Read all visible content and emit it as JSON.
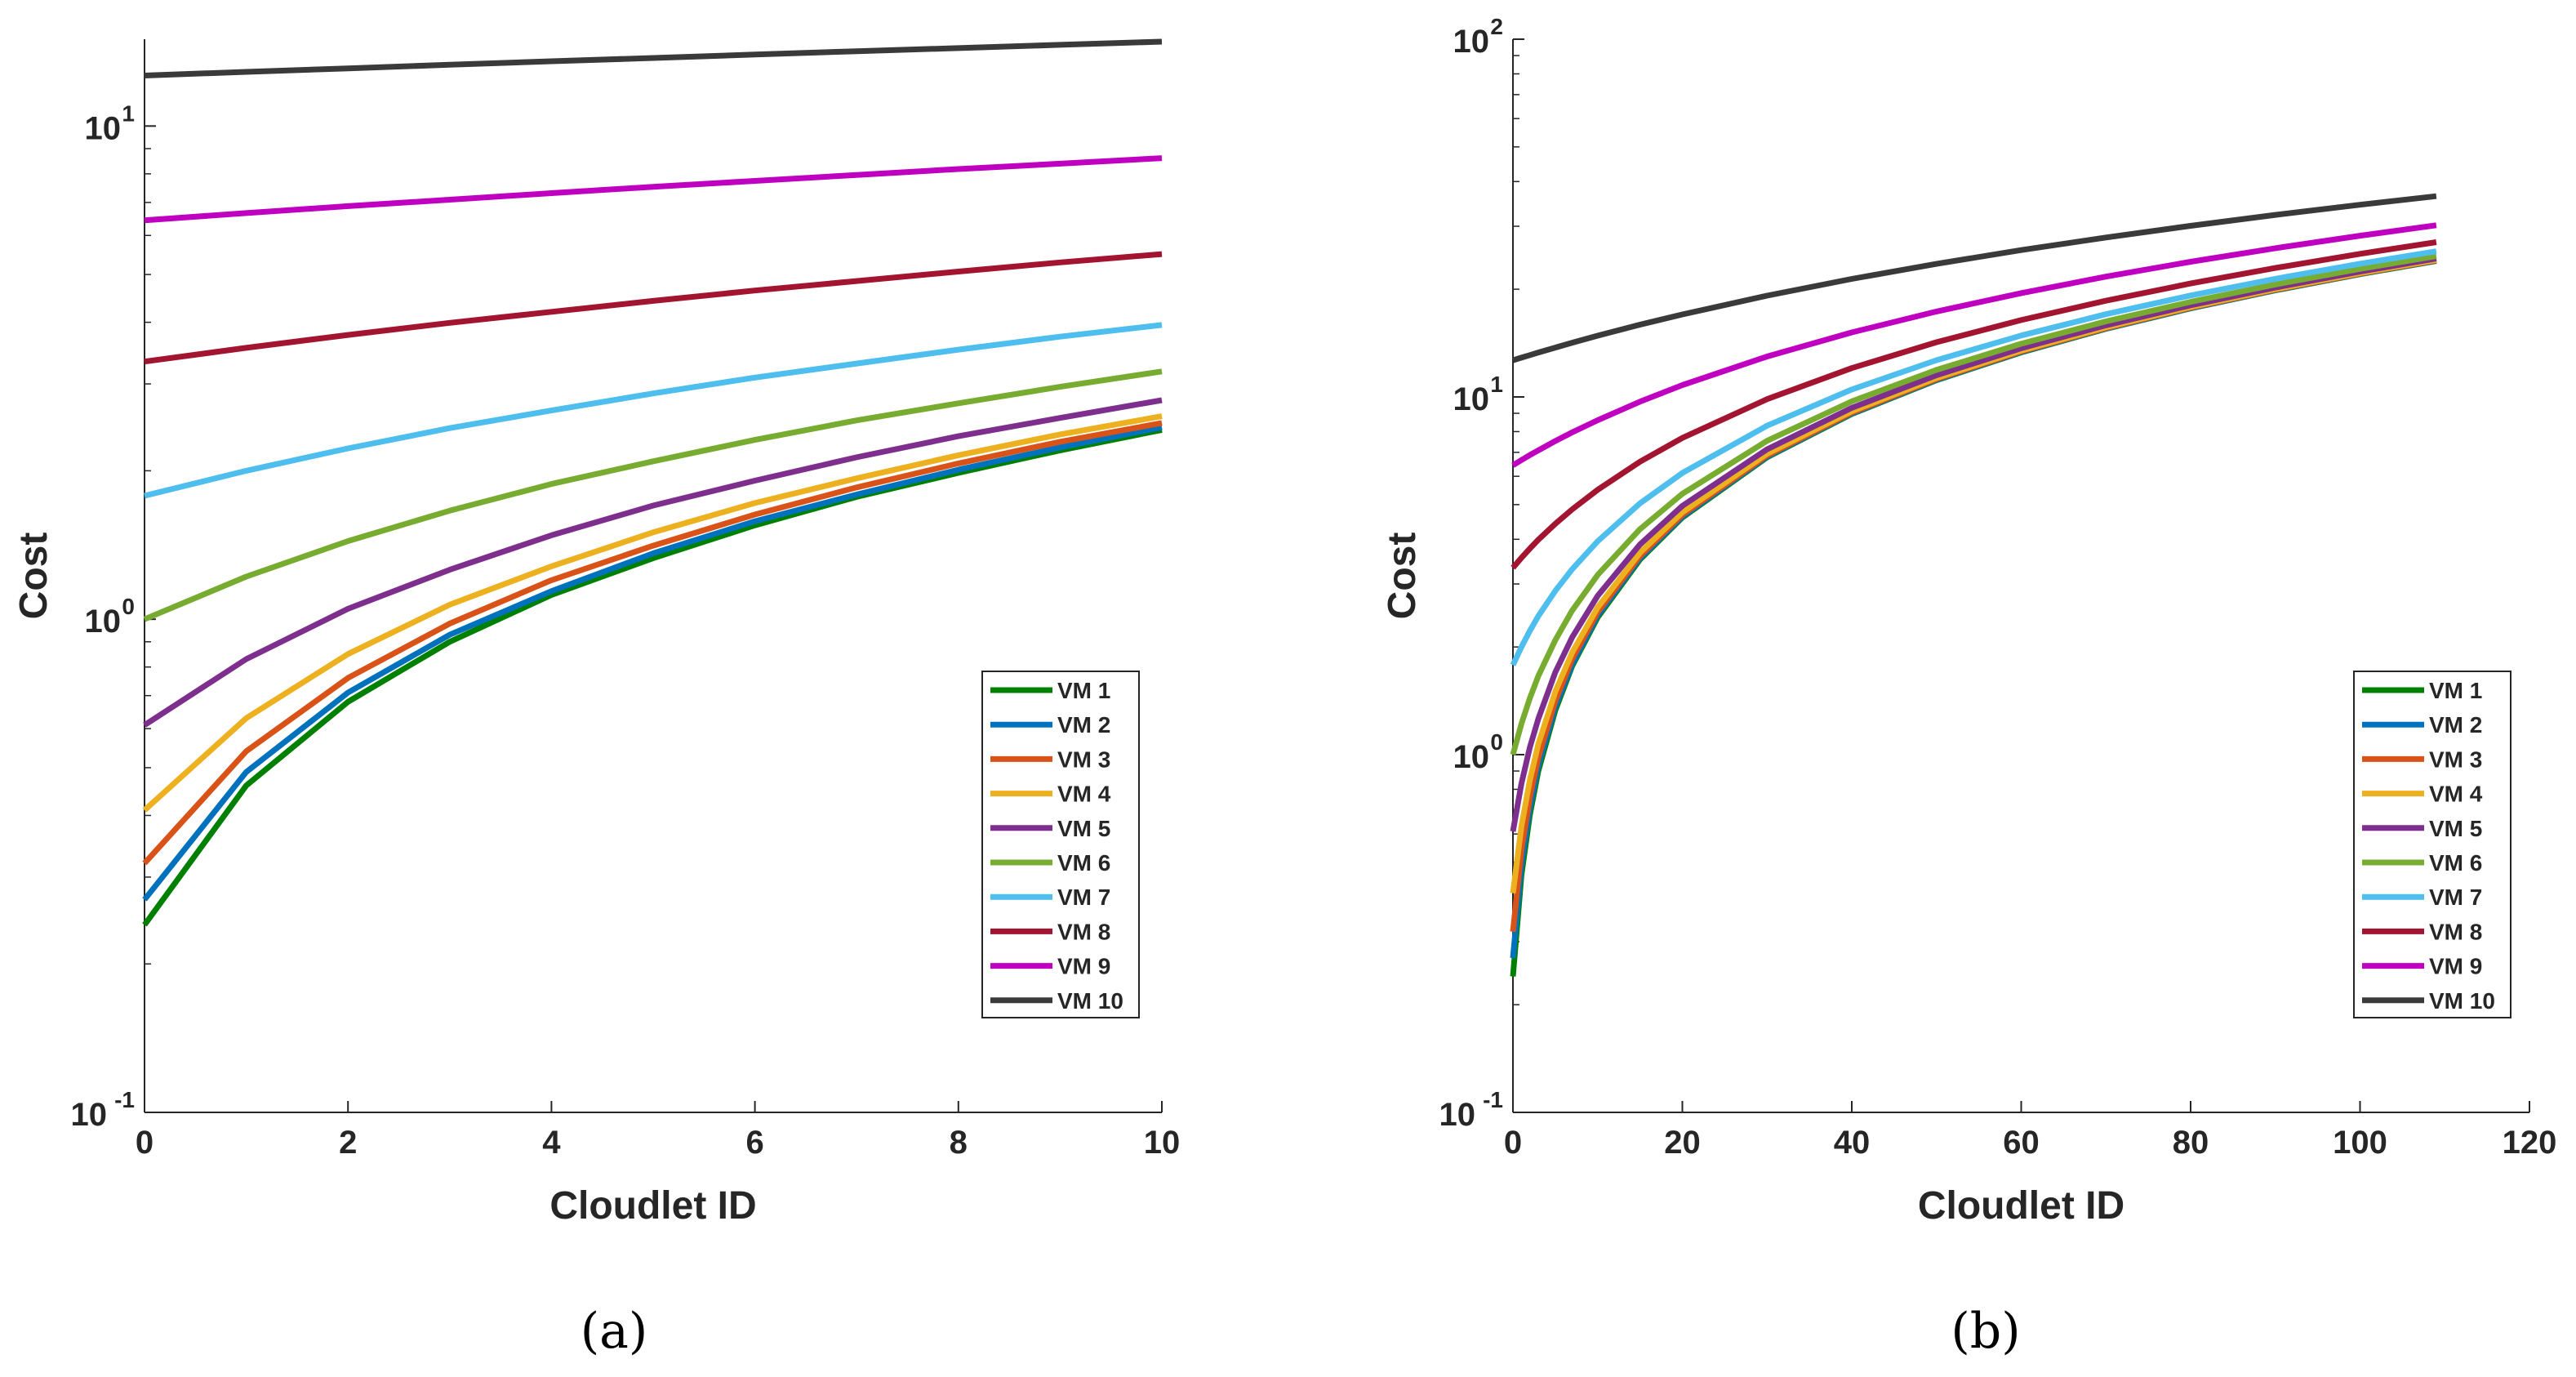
{
  "chart_data": [
    {
      "type": "line",
      "panel_label": "(a)",
      "title": "",
      "xlabel": "Cloudlet ID",
      "ylabel": "Cost",
      "yscale": "log",
      "xlim": [
        0,
        10
      ],
      "ylim": [
        0.1,
        15
      ],
      "xticks": [
        0,
        2,
        4,
        6,
        8,
        10
      ],
      "yticks": [
        {
          "base": "10",
          "exp": "-1",
          "value": 0.1
        },
        {
          "base": "10",
          "exp": "0",
          "value": 1
        },
        {
          "base": "10",
          "exp": "1",
          "value": 10
        }
      ],
      "grid": false,
      "legend_position": "lower-right",
      "x": [
        0,
        1,
        2,
        3,
        4,
        5,
        6,
        7,
        8,
        9,
        10
      ],
      "series": [
        {
          "name": "VM 1",
          "color": "#008000",
          "values": [
            0.24,
            0.46,
            0.68,
            0.9,
            1.12,
            1.33,
            1.55,
            1.77,
            1.98,
            2.2,
            2.42
          ]
        },
        {
          "name": "VM 2",
          "color": "#0072BD",
          "values": [
            0.27,
            0.49,
            0.71,
            0.93,
            1.14,
            1.36,
            1.58,
            1.79,
            2.01,
            2.23,
            2.45
          ]
        },
        {
          "name": "VM 3",
          "color": "#D95319",
          "values": [
            0.32,
            0.54,
            0.76,
            0.98,
            1.2,
            1.41,
            1.63,
            1.85,
            2.07,
            2.29,
            2.5
          ]
        },
        {
          "name": "VM 4",
          "color": "#EDB120",
          "values": [
            0.41,
            0.63,
            0.85,
            1.07,
            1.28,
            1.5,
            1.72,
            1.93,
            2.15,
            2.37,
            2.58
          ]
        },
        {
          "name": "VM 5",
          "color": "#7E2F8E",
          "values": [
            0.61,
            0.83,
            1.05,
            1.26,
            1.48,
            1.7,
            1.91,
            2.13,
            2.35,
            2.56,
            2.78
          ]
        },
        {
          "name": "VM 6",
          "color": "#77AC30",
          "values": [
            1.0,
            1.22,
            1.44,
            1.66,
            1.88,
            2.09,
            2.31,
            2.53,
            2.74,
            2.96,
            3.18
          ]
        },
        {
          "name": "VM 7",
          "color": "#4DBEEE",
          "values": [
            1.78,
            2.0,
            2.22,
            2.44,
            2.65,
            2.87,
            3.09,
            3.3,
            3.52,
            3.74,
            3.95
          ]
        },
        {
          "name": "VM 8",
          "color": "#A2142F",
          "values": [
            3.33,
            3.55,
            3.77,
            3.99,
            4.2,
            4.42,
            4.64,
            4.85,
            5.07,
            5.29,
            5.5
          ]
        },
        {
          "name": "VM 9",
          "color": "#C000C0",
          "values": [
            6.44,
            6.66,
            6.88,
            7.09,
            7.31,
            7.53,
            7.74,
            7.96,
            8.18,
            8.39,
            8.61
          ]
        },
        {
          "name": "VM 10",
          "color": "#3A3A3A",
          "values": [
            12.66,
            12.88,
            13.09,
            13.31,
            13.53,
            13.74,
            13.96,
            14.18,
            14.39,
            14.61,
            14.83
          ]
        }
      ]
    },
    {
      "type": "line",
      "panel_label": "(b)",
      "title": "",
      "xlabel": "Cloudlet ID",
      "ylabel": "Cost",
      "yscale": "log",
      "xlim": [
        0,
        120
      ],
      "ylim": [
        0.1,
        100
      ],
      "xticks": [
        0,
        20,
        40,
        60,
        80,
        100,
        120
      ],
      "yticks": [
        {
          "base": "10",
          "exp": "-1",
          "value": 0.1
        },
        {
          "base": "10",
          "exp": "0",
          "value": 1
        },
        {
          "base": "10",
          "exp": "1",
          "value": 10
        },
        {
          "base": "10",
          "exp": "2",
          "value": 100
        }
      ],
      "grid": false,
      "legend_position": "lower-right",
      "x": [
        0,
        1,
        2,
        3,
        5,
        7,
        10,
        15,
        20,
        30,
        40,
        50,
        60,
        70,
        80,
        90,
        100,
        109
      ],
      "series": [
        {
          "name": "VM 1",
          "color": "#008000",
          "values": [
            0.24,
            0.46,
            0.68,
            0.9,
            1.33,
            1.77,
            2.42,
            3.51,
            4.6,
            6.78,
            8.96,
            11.14,
            13.32,
            15.5,
            17.68,
            19.86,
            22.04,
            24.0
          ]
        },
        {
          "name": "VM 2",
          "color": "#0072BD",
          "values": [
            0.27,
            0.49,
            0.71,
            0.93,
            1.36,
            1.79,
            2.45,
            3.54,
            4.63,
            6.81,
            8.99,
            11.17,
            13.35,
            15.53,
            17.71,
            19.89,
            22.07,
            24.03
          ]
        },
        {
          "name": "VM 3",
          "color": "#D95319",
          "values": [
            0.32,
            0.54,
            0.76,
            0.98,
            1.41,
            1.85,
            2.5,
            3.59,
            4.68,
            6.86,
            9.04,
            11.22,
            13.4,
            15.58,
            17.76,
            19.94,
            22.12,
            24.08
          ]
        },
        {
          "name": "VM 4",
          "color": "#EDB120",
          "values": [
            0.41,
            0.63,
            0.85,
            1.07,
            1.5,
            1.93,
            2.58,
            3.67,
            4.76,
            6.94,
            9.12,
            11.3,
            13.48,
            15.66,
            17.84,
            20.02,
            22.2,
            24.16
          ]
        },
        {
          "name": "VM 5",
          "color": "#7E2F8E",
          "values": [
            0.61,
            0.83,
            1.05,
            1.26,
            1.7,
            2.13,
            2.78,
            3.87,
            4.96,
            7.14,
            9.32,
            11.5,
            13.68,
            15.86,
            18.04,
            20.22,
            22.4,
            24.36
          ]
        },
        {
          "name": "VM 6",
          "color": "#77AC30",
          "values": [
            1.0,
            1.22,
            1.44,
            1.66,
            2.09,
            2.53,
            3.18,
            4.27,
            5.36,
            7.54,
            9.72,
            11.9,
            14.08,
            16.26,
            18.44,
            20.62,
            22.8,
            24.76
          ]
        },
        {
          "name": "VM 7",
          "color": "#4DBEEE",
          "values": [
            1.78,
            2.0,
            2.22,
            2.44,
            2.87,
            3.3,
            3.95,
            5.04,
            6.13,
            8.31,
            10.49,
            12.67,
            14.85,
            17.03,
            19.21,
            21.39,
            23.57,
            25.53
          ]
        },
        {
          "name": "VM 8",
          "color": "#A2142F",
          "values": [
            3.33,
            3.55,
            3.77,
            3.99,
            4.42,
            4.85,
            5.5,
            6.59,
            7.68,
            9.86,
            12.04,
            14.22,
            16.4,
            18.58,
            20.76,
            22.94,
            25.12,
            27.08
          ]
        },
        {
          "name": "VM 9",
          "color": "#C000C0",
          "values": [
            6.44,
            6.66,
            6.88,
            7.09,
            7.53,
            7.96,
            8.61,
            9.7,
            10.79,
            12.97,
            15.15,
            17.33,
            19.51,
            21.69,
            23.87,
            26.05,
            28.23,
            30.19
          ]
        },
        {
          "name": "VM 10",
          "color": "#3A3A3A",
          "values": [
            12.66,
            12.88,
            13.09,
            13.31,
            13.74,
            14.18,
            14.83,
            15.92,
            17.01,
            19.19,
            21.37,
            23.55,
            25.73,
            27.91,
            30.09,
            32.27,
            34.45,
            36.41
          ]
        }
      ]
    }
  ]
}
